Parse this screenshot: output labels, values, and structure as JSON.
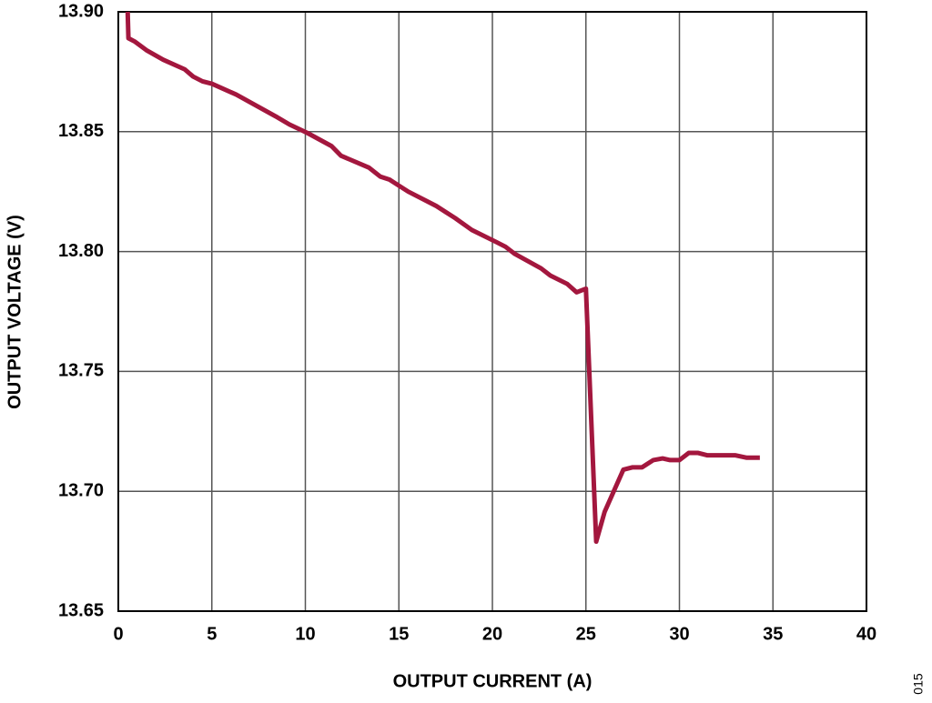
{
  "chart_data": {
    "type": "line",
    "x_label": "OUTPUT CURRENT (A)",
    "y_label": "OUTPUT VOLTAGE (V)",
    "figure_code": "015",
    "xlim": [
      0,
      40
    ],
    "ylim": [
      13.65,
      13.9
    ],
    "xticks": [
      0,
      5,
      10,
      15,
      20,
      25,
      30,
      35,
      40
    ],
    "yticks": [
      {
        "value": 13.65,
        "label": "13.65"
      },
      {
        "value": 13.7,
        "label": "13.70"
      },
      13.75,
      {
        "value": 13.8,
        "label": "13.80"
      },
      13.85,
      {
        "value": 13.9,
        "label": "13.90"
      }
    ],
    "grid": true,
    "series": [
      {
        "color": "#a3173e",
        "x": [
          0.5,
          0.54,
          0.9,
          1.5,
          2.4,
          3.55,
          4.0,
          4.5,
          5.0,
          6.3,
          8.5,
          9.15,
          10.1,
          11.4,
          11.9,
          13.4,
          14.0,
          14.5,
          14.9,
          15.5,
          17.0,
          17.5,
          18.0,
          18.9,
          20.2,
          20.7,
          21.2,
          22.6,
          23.1,
          24.0,
          24.5,
          25.0,
          25.55,
          26.0,
          27.0,
          27.5,
          28.0,
          28.6,
          29.1,
          29.5,
          30.0,
          30.5,
          31.0,
          31.5,
          33.0,
          33.6,
          34.3
        ],
        "values": [
          13.9,
          13.889,
          13.8875,
          13.884,
          13.88,
          13.876,
          13.873,
          13.871,
          13.87,
          13.8655,
          13.856,
          13.853,
          13.8495,
          13.844,
          13.84,
          13.835,
          13.8313,
          13.83,
          13.828,
          13.825,
          13.819,
          13.8165,
          13.814,
          13.809,
          13.804,
          13.802,
          13.799,
          13.793,
          13.79,
          13.7865,
          13.783,
          13.7845,
          13.679,
          13.6914,
          13.709,
          13.71,
          13.71,
          13.713,
          13.7137,
          13.713,
          13.713,
          13.716,
          13.716,
          13.715,
          13.715,
          13.714,
          13.714
        ]
      }
    ]
  }
}
